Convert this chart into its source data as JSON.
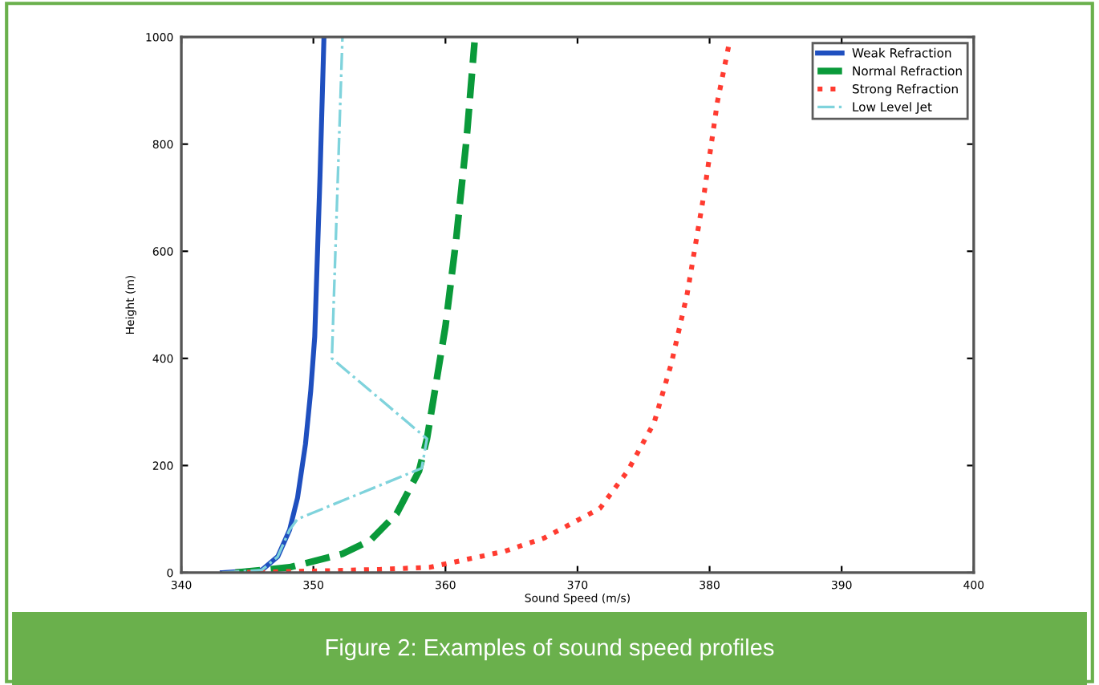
{
  "chart_data": {
    "type": "line",
    "xlabel": "Sound Speed (m/s)",
    "ylabel": "Height (m)",
    "xlim": [
      340,
      400
    ],
    "xticks": [
      340,
      350,
      360,
      370,
      380,
      390,
      400
    ],
    "ylim": [
      0,
      1000
    ],
    "yticks": [
      0,
      200,
      400,
      600,
      800,
      1000
    ],
    "grid": false,
    "legend": "top right",
    "marker": "none",
    "annotations": [
      "Figure 2: Examples of sound speed profiles"
    ],
    "series": [
      {
        "name": "Weak Refraction",
        "color": "#1f4fbf",
        "line_style": "solid",
        "x": [
          343.1,
          346.1,
          347.3,
          348.2,
          348.8,
          349.4,
          349.8,
          350.1,
          350.3,
          350.5,
          350.8
        ],
        "values": [
          0,
          5,
          30,
          80,
          140,
          240,
          340,
          440,
          590,
          740,
          1000
        ]
      },
      {
        "name": "Normal Refraction",
        "color": "#0a9a3a",
        "line_style": "dashed",
        "x": [
          344.1,
          348.2,
          352.2,
          354.3,
          356.3,
          358.0,
          358.6,
          359.2,
          360.0,
          360.8,
          361.6,
          362.2
        ],
        "values": [
          0,
          10,
          35,
          60,
          110,
          190,
          250,
          340,
          460,
          620,
          810,
          990
        ]
      },
      {
        "name": "Strong Refraction",
        "color": "#ff3b30",
        "line_style": "dotted",
        "x": [
          344,
          350,
          355,
          358.8,
          364.5,
          367.5,
          371.7,
          373.8,
          375.8,
          377.1,
          378.3,
          379.6,
          380.6,
          381.5
        ],
        "values": [
          0,
          3,
          6,
          10,
          40,
          65,
          120,
          190,
          280,
          390,
          520,
          710,
          880,
          990
        ]
      },
      {
        "name": "Low Level Jet",
        "color": "#7fd3dc",
        "line_style": "dashdot",
        "x": [
          343.1,
          346.1,
          347.3,
          348.2,
          348.8,
          358.2,
          358.6,
          351.4,
          352.2
        ],
        "values": [
          0,
          5,
          30,
          80,
          100,
          195,
          250,
          400,
          1000
        ]
      }
    ]
  }
}
